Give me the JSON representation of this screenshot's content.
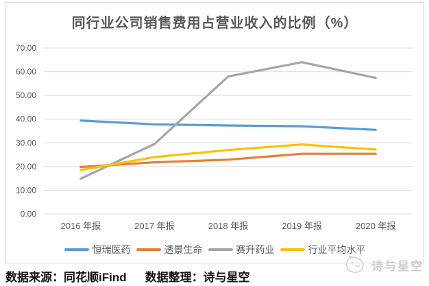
{
  "chart_data": {
    "type": "line",
    "title": "同行业公司销售费用占营业收入的比例（%）",
    "categories": [
      "2016 年报",
      "2017 年报",
      "2018 年报",
      "2019 年报",
      "2020 年报"
    ],
    "series": [
      {
        "name": "恒瑞医药",
        "color": "#5B9BD5",
        "values": [
          39.4,
          37.8,
          37.3,
          37.0,
          35.5
        ]
      },
      {
        "name": "透景生命",
        "color": "#ED7D31",
        "values": [
          19.8,
          21.8,
          22.9,
          25.4,
          25.4
        ]
      },
      {
        "name": "赛升药业",
        "color": "#A5A5A5",
        "values": [
          14.9,
          29.5,
          58.0,
          64.0,
          57.4
        ]
      },
      {
        "name": "行业平均水平",
        "color": "#FFC000",
        "values": [
          18.5,
          24.0,
          27.0,
          29.3,
          27.2
        ]
      }
    ],
    "xlabel": "",
    "ylabel": "",
    "ylim": [
      0,
      70
    ],
    "ytick_step": 10,
    "ytick_labels": [
      "0.00",
      "10.00",
      "20.00",
      "30.00",
      "40.00",
      "50.00",
      "60.00",
      "70.00"
    ],
    "grid": true,
    "legend_position": "bottom"
  },
  "footer": {
    "source_label": "数据来源：同花顺iFind",
    "editor_label": "数据整理：诗与星空"
  },
  "watermark": {
    "text": "诗与星空"
  },
  "colors": {
    "grid": "#D9D9D9",
    "axis_text": "#595959",
    "title_text": "#595959",
    "chart_border": "#D8D8D8",
    "caption_text": "#141414",
    "watermark": "#CFCFCF"
  }
}
